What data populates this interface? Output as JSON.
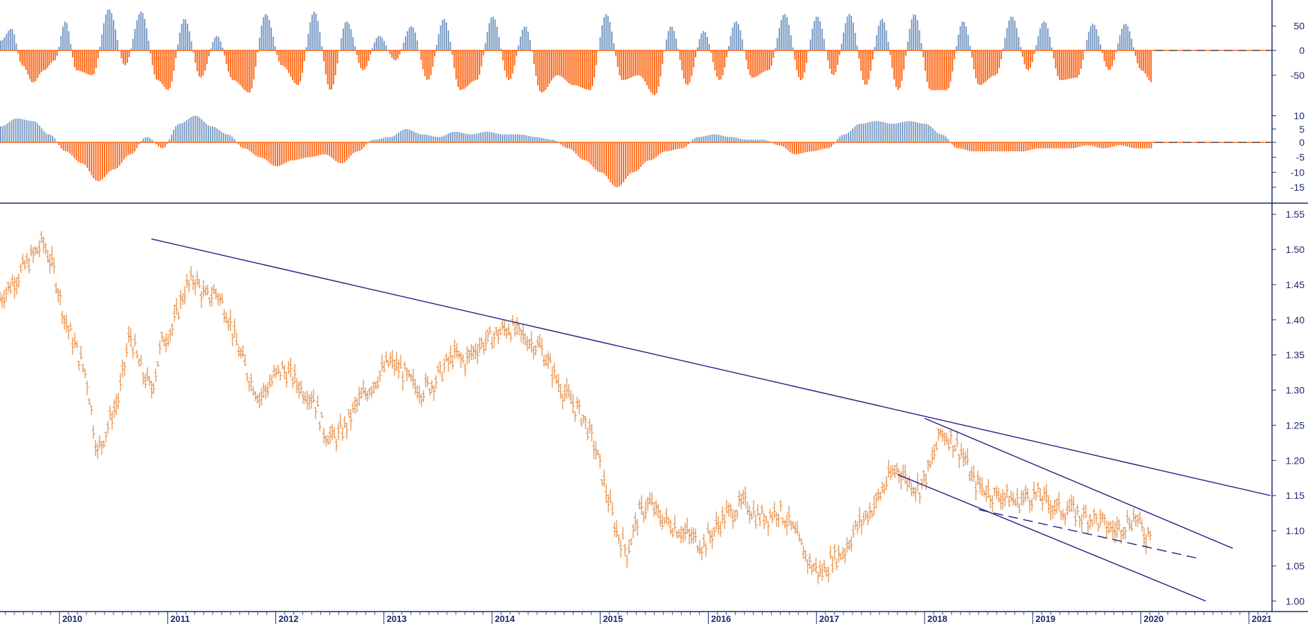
{
  "chart_data": [
    {
      "type": "bar",
      "panel": "upper-oscillator",
      "ylim": [
        -85,
        95
      ],
      "yticks": [
        50,
        0,
        -50
      ],
      "zero_line": "dashed",
      "colors": {
        "positive": "#7b9cc4",
        "negative": "#ff6a1a"
      },
      "series": [
        {
          "x": [
            2009.45,
            2009.55,
            2009.65,
            2009.75,
            2009.85,
            2009.95,
            2010.05,
            2010.15,
            2010.3,
            2010.45,
            2010.6,
            2010.75,
            2010.9,
            2011.0,
            2011.15,
            2011.3,
            2011.45,
            2011.6,
            2011.75,
            2011.9,
            2012.05,
            2012.2,
            2012.35,
            2012.5,
            2012.65,
            2012.8,
            2012.95,
            2013.1,
            2013.25,
            2013.4,
            2013.55,
            2013.7,
            2013.85,
            2014.0,
            2014.15,
            2014.3,
            2014.45,
            2014.6,
            2014.75,
            2014.9,
            2015.05,
            2015.2,
            2015.35,
            2015.5,
            2015.65,
            2015.8,
            2015.95,
            2016.1,
            2016.25,
            2016.4,
            2016.55,
            2016.7,
            2016.85,
            2017.0,
            2017.15,
            2017.3,
            2017.45,
            2017.6,
            2017.75,
            2017.9,
            2018.05,
            2018.2,
            2018.35,
            2018.5,
            2018.65,
            2018.8,
            2018.95,
            2019.1,
            2019.25,
            2019.4,
            2019.55,
            2019.7,
            2019.85,
            2020.0,
            2020.1
          ],
          "y": [
            20,
            45,
            -30,
            -65,
            -40,
            -20,
            60,
            -40,
            -50,
            85,
            -30,
            80,
            -60,
            -80,
            65,
            -55,
            30,
            -60,
            -85,
            75,
            -30,
            -70,
            80,
            -80,
            60,
            -40,
            30,
            -20,
            50,
            -60,
            65,
            -80,
            -60,
            70,
            -60,
            50,
            -85,
            -50,
            -70,
            -80,
            75,
            -60,
            -50,
            -90,
            50,
            -70,
            40,
            -60,
            60,
            -55,
            -40,
            75,
            -60,
            70,
            -50,
            75,
            -70,
            65,
            -80,
            75,
            -80,
            -80,
            60,
            -70,
            -50,
            70,
            -40,
            60,
            -60,
            -55,
            55,
            -40,
            55,
            -40,
            -65
          ]
        }
      ]
    },
    {
      "type": "bar",
      "panel": "middle-oscillator",
      "ylim": [
        -18,
        13
      ],
      "yticks": [
        10,
        5,
        0,
        -5,
        -10,
        -15
      ],
      "zero_line": "dashed",
      "colors": {
        "positive": "#7b9cc4",
        "negative": "#ff6a1a"
      },
      "series": [
        {
          "x": [
            2009.45,
            2009.6,
            2009.75,
            2009.9,
            2010.05,
            2010.2,
            2010.35,
            2010.5,
            2010.65,
            2010.8,
            2010.95,
            2011.1,
            2011.25,
            2011.4,
            2011.55,
            2011.7,
            2011.85,
            2012.0,
            2012.15,
            2012.3,
            2012.45,
            2012.6,
            2012.75,
            2012.9,
            2013.05,
            2013.2,
            2013.35,
            2013.5,
            2013.65,
            2013.8,
            2013.95,
            2014.1,
            2014.25,
            2014.4,
            2014.55,
            2014.7,
            2014.85,
            2015.0,
            2015.15,
            2015.3,
            2015.45,
            2015.6,
            2015.75,
            2015.9,
            2016.05,
            2016.2,
            2016.35,
            2016.5,
            2016.65,
            2016.8,
            2016.95,
            2017.1,
            2017.25,
            2017.4,
            2017.55,
            2017.7,
            2017.85,
            2018.0,
            2018.15,
            2018.3,
            2018.45,
            2018.6,
            2018.75,
            2018.9,
            2019.05,
            2019.2,
            2019.35,
            2019.5,
            2019.65,
            2019.8,
            2019.95,
            2020.1
          ],
          "y": [
            6,
            9,
            8,
            3,
            -3,
            -7,
            -13,
            -9,
            -4,
            2,
            -2,
            7,
            10,
            6,
            3,
            -2,
            -5,
            -8,
            -6,
            -5,
            -4,
            -7,
            -3,
            1,
            2,
            5,
            3,
            2,
            4,
            3,
            4,
            3,
            3,
            2,
            1,
            -2,
            -6,
            -10,
            -15,
            -10,
            -6,
            -3,
            -2,
            2,
            3,
            2,
            1,
            1,
            -1,
            -4,
            -3,
            -2,
            3,
            7,
            8,
            7,
            8,
            7,
            3,
            -2,
            -3,
            -3,
            -3,
            -3,
            -2,
            -2,
            -2,
            -1,
            -2,
            -1,
            -2,
            -2
          ]
        }
      ]
    },
    {
      "type": "line",
      "panel": "price",
      "ylim": [
        0.99,
        1.56
      ],
      "yticks": [
        1.55,
        1.5,
        1.45,
        1.4,
        1.35,
        1.3,
        1.25,
        1.2,
        1.15,
        1.1,
        1.05,
        1.0
      ],
      "xlim": [
        2009.45,
        2021.2
      ],
      "xticks": [
        "2010",
        "2011",
        "2012",
        "2013",
        "2014",
        "2015",
        "2016",
        "2017",
        "2018",
        "2019",
        "2020",
        "2021"
      ],
      "color": "#e5863a",
      "series": [
        {
          "x": [
            2009.45,
            2009.6,
            2009.75,
            2009.85,
            2009.95,
            2010.05,
            2010.15,
            2010.25,
            2010.35,
            2010.45,
            2010.55,
            2010.65,
            2010.75,
            2010.85,
            2010.95,
            2011.05,
            2011.15,
            2011.25,
            2011.35,
            2011.45,
            2011.55,
            2011.65,
            2011.75,
            2011.85,
            2011.95,
            2012.05,
            2012.15,
            2012.25,
            2012.35,
            2012.45,
            2012.55,
            2012.65,
            2012.75,
            2012.85,
            2012.95,
            2013.05,
            2013.15,
            2013.25,
            2013.35,
            2013.45,
            2013.55,
            2013.65,
            2013.75,
            2013.85,
            2013.95,
            2014.05,
            2014.15,
            2014.25,
            2014.35,
            2014.45,
            2014.55,
            2014.65,
            2014.75,
            2014.85,
            2014.95,
            2015.05,
            2015.15,
            2015.25,
            2015.35,
            2015.45,
            2015.55,
            2015.65,
            2015.75,
            2015.85,
            2015.95,
            2016.05,
            2016.15,
            2016.25,
            2016.35,
            2016.45,
            2016.55,
            2016.65,
            2016.75,
            2016.85,
            2016.95,
            2017.05,
            2017.15,
            2017.25,
            2017.35,
            2017.45,
            2017.55,
            2017.65,
            2017.75,
            2017.85,
            2017.95,
            2018.05,
            2018.15,
            2018.25,
            2018.35,
            2018.45,
            2018.55,
            2018.65,
            2018.75,
            2018.85,
            2018.95,
            2019.05,
            2019.15,
            2019.25,
            2019.35,
            2019.45,
            2019.55,
            2019.65,
            2019.75,
            2019.85,
            2019.95,
            2020.05,
            2020.1
          ],
          "y": [
            1.43,
            1.46,
            1.49,
            1.51,
            1.47,
            1.4,
            1.36,
            1.32,
            1.21,
            1.25,
            1.29,
            1.38,
            1.33,
            1.3,
            1.37,
            1.39,
            1.44,
            1.46,
            1.43,
            1.44,
            1.41,
            1.36,
            1.32,
            1.29,
            1.31,
            1.33,
            1.32,
            1.3,
            1.29,
            1.24,
            1.23,
            1.25,
            1.28,
            1.3,
            1.32,
            1.34,
            1.33,
            1.31,
            1.3,
            1.31,
            1.33,
            1.35,
            1.34,
            1.36,
            1.37,
            1.38,
            1.39,
            1.38,
            1.37,
            1.36,
            1.33,
            1.3,
            1.28,
            1.26,
            1.22,
            1.16,
            1.1,
            1.07,
            1.12,
            1.14,
            1.12,
            1.11,
            1.1,
            1.09,
            1.08,
            1.1,
            1.12,
            1.13,
            1.14,
            1.12,
            1.12,
            1.13,
            1.11,
            1.08,
            1.05,
            1.04,
            1.06,
            1.07,
            1.1,
            1.12,
            1.14,
            1.17,
            1.19,
            1.17,
            1.16,
            1.19,
            1.24,
            1.23,
            1.21,
            1.17,
            1.16,
            1.15,
            1.15,
            1.14,
            1.15,
            1.15,
            1.14,
            1.13,
            1.13,
            1.12,
            1.12,
            1.11,
            1.1,
            1.11,
            1.12,
            1.09,
            1.11
          ]
        }
      ],
      "trendlines": [
        {
          "style": "solid",
          "x": [
            2010.85,
            2021.2
          ],
          "y": [
            1.515,
            1.15
          ]
        },
        {
          "style": "solid",
          "x": [
            2018.0,
            2020.85
          ],
          "y": [
            1.26,
            1.075
          ]
        },
        {
          "style": "solid",
          "x": [
            2017.75,
            2020.6
          ],
          "y": [
            1.18,
            1.0
          ]
        },
        {
          "style": "dashed",
          "x": [
            2018.5,
            2020.55
          ],
          "y": [
            1.13,
            1.06
          ]
        }
      ]
    }
  ]
}
